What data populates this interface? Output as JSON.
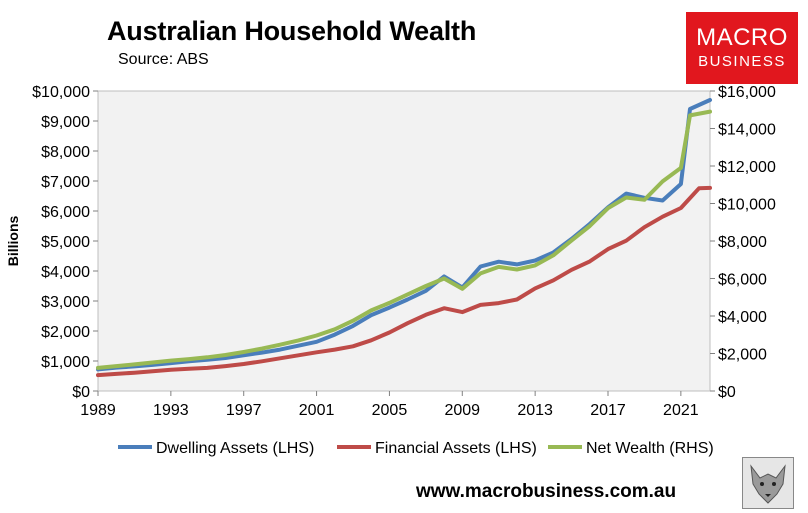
{
  "header": {
    "title": "Australian Household Wealth",
    "subtitle": "Source: ABS"
  },
  "logo": {
    "line1": "MACRO",
    "line2": "BUSINESS",
    "color": "#e1171e"
  },
  "footer": {
    "website": "www.macrobusiness.com.au"
  },
  "chart_data": {
    "type": "line",
    "ylabel": "Billions",
    "ylim": [
      0,
      10000
    ],
    "y2lim": [
      0,
      16000
    ],
    "yticks": [
      "$0",
      "$1,000",
      "$2,000",
      "$3,000",
      "$4,000",
      "$5,000",
      "$6,000",
      "$7,000",
      "$8,000",
      "$9,000",
      "$10,000"
    ],
    "y2ticks": [
      "$0",
      "$2,000",
      "$4,000",
      "$6,000",
      "$8,000",
      "$10,000",
      "$12,000",
      "$14,000",
      "$16,000"
    ],
    "xticks": [
      "1989",
      "1993",
      "1997",
      "2001",
      "2005",
      "2009",
      "2013",
      "2017",
      "2021"
    ],
    "xlim": [
      1989,
      2022.6
    ],
    "legend_position": "bottom",
    "plot_background": "#f2f2f2",
    "series": [
      {
        "name": "Dwelling Assets (LHS)",
        "axis": "left",
        "color": "#4a7ebb",
        "x": [
          1989,
          1990,
          1991,
          1992,
          1993,
          1994,
          1995,
          1996,
          1997,
          1998,
          1999,
          2000,
          2001,
          2002,
          2003,
          2004,
          2005,
          2006,
          2007,
          2008,
          2009,
          2010,
          2011,
          2012,
          2013,
          2014,
          2015,
          2016,
          2017,
          2018,
          2019,
          2020,
          2021,
          2021.5,
          2022.6
        ],
        "values": [
          720,
          780,
          820,
          870,
          930,
          990,
          1040,
          1100,
          1190,
          1280,
          1380,
          1510,
          1640,
          1880,
          2170,
          2530,
          2780,
          3050,
          3340,
          3820,
          3450,
          4150,
          4310,
          4220,
          4350,
          4620,
          5070,
          5570,
          6120,
          6580,
          6440,
          6350,
          6900,
          9400,
          9700
        ]
      },
      {
        "name": "Financial Assets (LHS)",
        "axis": "left",
        "color": "#be4b48",
        "x": [
          1989,
          1990,
          1991,
          1992,
          1993,
          1994,
          1995,
          1996,
          1997,
          1998,
          1999,
          2000,
          2001,
          2002,
          2003,
          2004,
          2005,
          2006,
          2007,
          2008,
          2009,
          2010,
          2011,
          2012,
          2013,
          2014,
          2015,
          2016,
          2017,
          2018,
          2019,
          2020,
          2021,
          2022,
          2022.6
        ],
        "values": [
          530,
          570,
          610,
          660,
          710,
          740,
          770,
          830,
          900,
          990,
          1090,
          1190,
          1290,
          1380,
          1490,
          1690,
          1950,
          2260,
          2540,
          2760,
          2630,
          2870,
          2930,
          3050,
          3420,
          3690,
          4040,
          4320,
          4730,
          5010,
          5460,
          5810,
          6100,
          6760,
          6770
        ]
      },
      {
        "name": "Net Wealth (RHS)",
        "axis": "right",
        "color": "#98b954",
        "x": [
          1989,
          1990,
          1991,
          1992,
          1993,
          1994,
          1995,
          1996,
          1997,
          1998,
          1999,
          2000,
          2001,
          2002,
          2003,
          2004,
          2005,
          2006,
          2007,
          2008,
          2009,
          2010,
          2011,
          2012,
          2013,
          2014,
          2015,
          2016,
          2017,
          2018,
          2019,
          2020,
          2021,
          2021.5,
          2022.6
        ],
        "values": [
          1230,
          1330,
          1420,
          1520,
          1620,
          1700,
          1800,
          1920,
          2080,
          2260,
          2470,
          2700,
          2960,
          3290,
          3750,
          4300,
          4700,
          5150,
          5600,
          6000,
          5450,
          6270,
          6620,
          6480,
          6700,
          7240,
          8030,
          8800,
          9750,
          10320,
          10200,
          11180,
          11900,
          14700,
          14900
        ]
      }
    ]
  }
}
